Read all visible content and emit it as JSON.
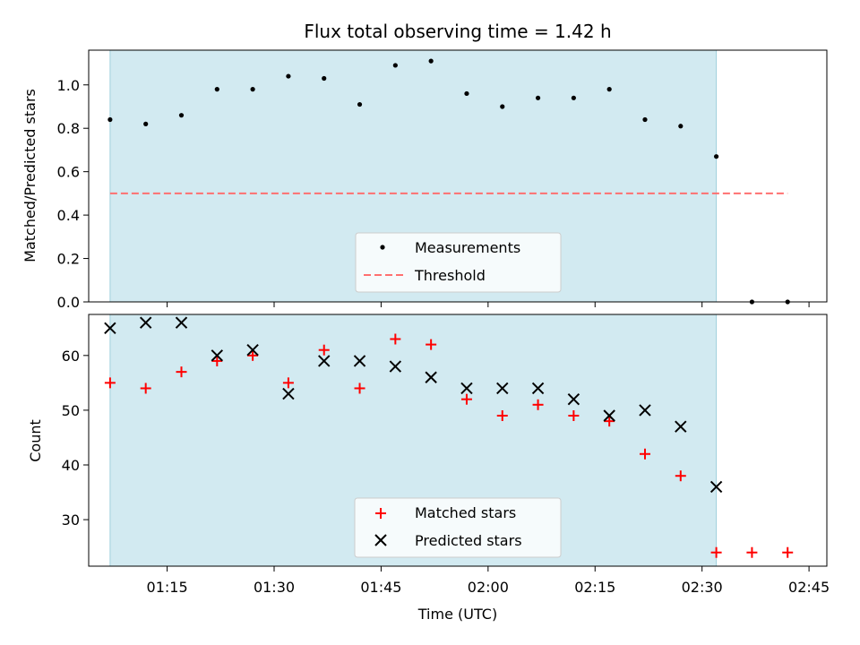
{
  "chart_data": {
    "title": "Flux total observing time = 1.42 h",
    "xlabel": "Time (UTC)",
    "x_ticks": [
      "01:15",
      "01:30",
      "01:45",
      "02:00",
      "02:15",
      "02:30",
      "02:45"
    ],
    "top": {
      "type": "scatter",
      "ylabel": "Matched/Predicted stars",
      "ylim": [
        0,
        1.16
      ],
      "y_ticks": [
        "0.0",
        "0.2",
        "0.4",
        "0.6",
        "0.8",
        "1.0"
      ],
      "legend_position": "lower-center",
      "series": [
        {
          "name": "Measurements",
          "color": "#000000",
          "marker": "dot",
          "x": [
            "01:07",
            "01:12",
            "01:17",
            "01:22",
            "01:27",
            "01:32",
            "01:37",
            "01:42",
            "01:47",
            "01:52",
            "01:57",
            "02:02",
            "02:07",
            "02:12",
            "02:17",
            "02:22",
            "02:27",
            "02:32",
            "02:37",
            "02:42"
          ],
          "y": [
            0.84,
            0.82,
            0.86,
            0.98,
            0.98,
            1.04,
            1.03,
            0.91,
            1.09,
            1.11,
            0.96,
            0.9,
            0.94,
            0.94,
            0.98,
            0.84,
            0.81,
            0.67,
            0.0,
            0.0
          ]
        }
      ],
      "threshold": {
        "name": "Threshold",
        "value": 0.5,
        "color": "#ff7070",
        "x_range": [
          "01:07",
          "02:42"
        ]
      }
    },
    "bottom": {
      "type": "scatter",
      "ylabel": "Count",
      "ylim": [
        21.5,
        67.5
      ],
      "y_ticks": [
        "30",
        "40",
        "50",
        "60"
      ],
      "legend_position": "lower-center",
      "series": [
        {
          "name": "Matched stars",
          "color": "#ff0000",
          "marker": "plus",
          "x": [
            "01:07",
            "01:12",
            "01:17",
            "01:22",
            "01:27",
            "01:32",
            "01:37",
            "01:42",
            "01:47",
            "01:52",
            "01:57",
            "02:02",
            "02:07",
            "02:12",
            "02:17",
            "02:22",
            "02:27",
            "02:32",
            "02:37",
            "02:42"
          ],
          "y": [
            55,
            54,
            57,
            59,
            60,
            55,
            61,
            54,
            63,
            62,
            52,
            49,
            51,
            49,
            48,
            42,
            38,
            24,
            24,
            24
          ]
        },
        {
          "name": "Predicted stars",
          "color": "#000000",
          "marker": "x",
          "x": [
            "01:07",
            "01:12",
            "01:17",
            "01:22",
            "01:27",
            "01:32",
            "01:37",
            "01:42",
            "01:47",
            "01:52",
            "01:57",
            "02:02",
            "02:07",
            "02:12",
            "02:17",
            "02:22",
            "02:27",
            "02:32"
          ],
          "y": [
            65,
            66,
            66,
            60,
            61,
            53,
            59,
            59,
            58,
            56,
            54,
            54,
            54,
            52,
            49,
            50,
            47,
            36
          ]
        }
      ]
    },
    "shaded_region": {
      "x_range": [
        "01:07",
        "02:32"
      ],
      "color": "#add8e6"
    }
  }
}
